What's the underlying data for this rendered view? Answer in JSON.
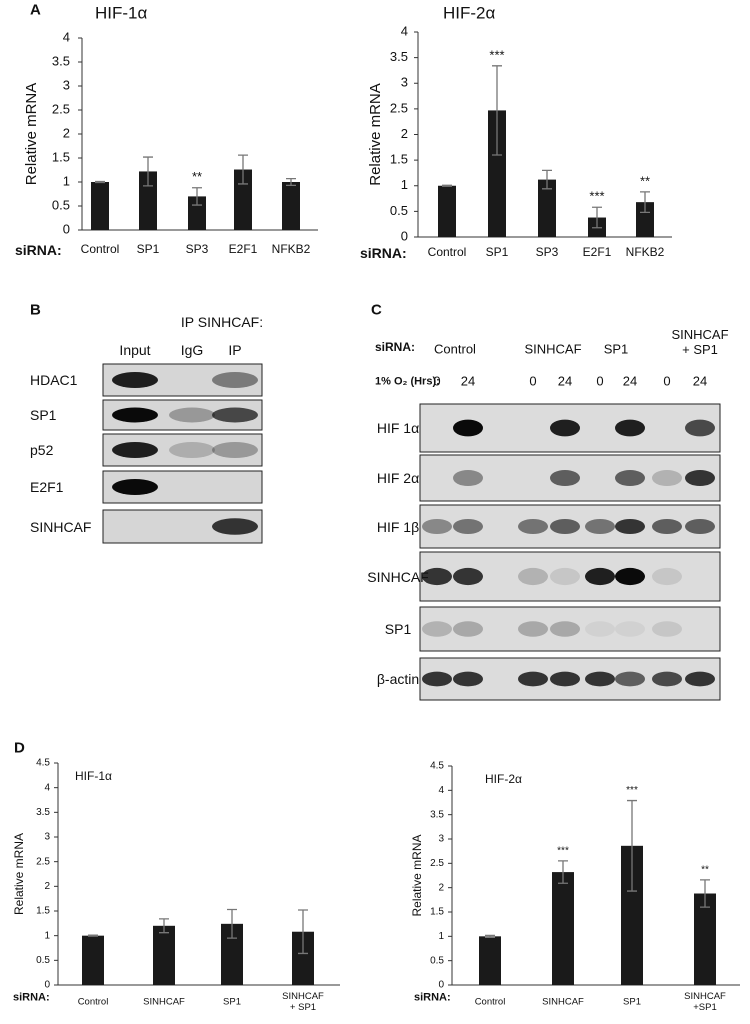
{
  "panel_labels": {
    "a": "A",
    "b": "B",
    "c": "C",
    "d": "D"
  },
  "chart_data": [
    {
      "type": "bar",
      "title": "HIF-1α",
      "y_label": "Relative mRNA",
      "x_label": "siRNA:",
      "categories": [
        "Control",
        "SP1",
        "SP3",
        "E2F1",
        "NFKB2"
      ],
      "values": [
        1.0,
        1.22,
        0.7,
        1.26,
        1.0
      ],
      "errors": [
        0.01,
        0.3,
        0.18,
        0.3,
        0.07
      ],
      "annotations": [
        null,
        null,
        "**",
        null,
        null
      ],
      "color": "#1a1a1a",
      "ylim": [
        0,
        4
      ],
      "yticks": [
        0,
        0.5,
        1,
        1.5,
        2,
        2.5,
        3,
        3.5,
        4
      ]
    },
    {
      "type": "bar",
      "title": "HIF-2α",
      "y_label": "Relative mRNA",
      "x_label": "siRNA:",
      "categories": [
        "Control",
        "SP1",
        "SP3",
        "E2F1",
        "NFKB2"
      ],
      "values": [
        1.0,
        2.47,
        1.12,
        0.38,
        0.68
      ],
      "errors": [
        0.01,
        0.87,
        0.18,
        0.2,
        0.2
      ],
      "annotations": [
        null,
        "***",
        null,
        "***",
        "**"
      ],
      "color": "#1a1a1a",
      "ylim": [
        0,
        4
      ],
      "yticks": [
        0,
        0.5,
        1,
        1.5,
        2,
        2.5,
        3,
        3.5,
        4
      ]
    },
    {
      "type": "bar",
      "title": "HIF-1α",
      "y_label": "Relative mRNA",
      "x_label": "siRNA:",
      "categories": [
        "Control",
        "SINHCAF",
        "SP1",
        "SINHCAF\n+ SP1"
      ],
      "values": [
        1.0,
        1.2,
        1.24,
        1.08
      ],
      "errors": [
        0.01,
        0.14,
        0.29,
        0.44
      ],
      "annotations": [
        null,
        null,
        null,
        null
      ],
      "color": "#1a1a1a",
      "ylim": [
        0,
        4.5
      ],
      "yticks": [
        0,
        0.5,
        1,
        1.5,
        2,
        2.5,
        3,
        3.5,
        4,
        4.5
      ]
    },
    {
      "type": "bar",
      "title": "HIF-2α",
      "y_label": "Relative mRNA",
      "x_label": "siRNA:",
      "categories": [
        "Control",
        "SINHCAF",
        "SP1",
        "SINHCAF\n+SP1"
      ],
      "values": [
        1.0,
        2.32,
        2.86,
        1.88
      ],
      "errors": [
        0.02,
        0.23,
        0.93,
        0.28
      ],
      "annotations": [
        null,
        "***",
        "***",
        "**"
      ],
      "color": "#1a1a1a",
      "ylim": [
        0,
        4.5
      ],
      "yticks": [
        0,
        0.5,
        1,
        1.5,
        2,
        2.5,
        3,
        3.5,
        4,
        4.5
      ]
    }
  ],
  "blot_b": {
    "title": "IP SINHCAF:",
    "columns": [
      "Input",
      "IgG",
      "IP"
    ],
    "rows": [
      "HDAC1",
      "SP1",
      "p52",
      "E2F1",
      "SINHCAF"
    ]
  },
  "blot_c": {
    "sirna_label": "siRNA:",
    "groups": [
      "Control",
      "SINHCAF",
      "SP1",
      "SINHCAF\n+ SP1"
    ],
    "time_label": "1% O₂ (Hrs):",
    "times": [
      0,
      24,
      0,
      24,
      0,
      24,
      0,
      24
    ],
    "rows": [
      "HIF 1α",
      "HIF 2α",
      "HIF 1β",
      "SINHCAF",
      "SP1",
      "β-actin"
    ]
  }
}
